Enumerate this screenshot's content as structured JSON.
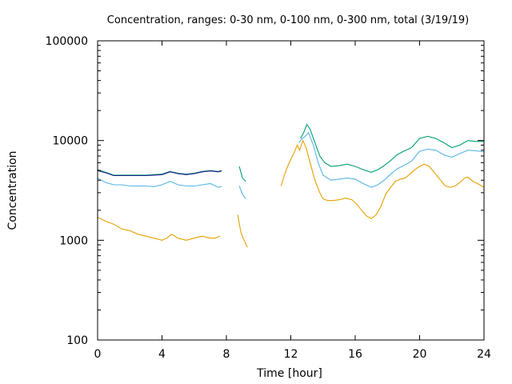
{
  "chart_data": {
    "type": "line",
    "title": "Concentration, ranges: 0-30 nm, 0-100 nm, 0-300 nm, total (3/19/19)",
    "xlabel": "Time [hour]",
    "ylabel": "Concentration",
    "xlim": [
      0,
      24
    ],
    "ylim": [
      100,
      100000
    ],
    "yscale": "log",
    "xticks": [
      0,
      4,
      8,
      12,
      16,
      20,
      24
    ],
    "yticks": [
      100,
      1000,
      10000,
      100000
    ],
    "grid": false,
    "legend": "none",
    "series": [
      {
        "color": "#e69f00",
        "x": [
          0,
          0.5,
          1,
          1.5,
          2,
          2.5,
          3,
          3.5,
          4,
          4.3,
          4.6,
          5,
          5.5,
          6,
          6.5,
          7,
          7.3,
          7.6,
          8.7,
          8.9,
          9.1,
          9.3,
          11.4,
          11.6,
          11.8,
          12.0,
          12.2,
          12.4,
          12.55,
          12.75,
          12.95,
          13.2,
          13.5,
          13.8,
          14.0,
          14.3,
          14.6,
          15.0,
          15.4,
          15.8,
          16.1,
          16.4,
          16.7,
          17.0,
          17.3,
          17.6,
          17.9,
          18.2,
          18.5,
          18.8,
          19.1,
          19.4,
          19.7,
          20.0,
          20.3,
          20.6,
          21.0,
          21.3,
          21.6,
          21.9,
          22.2,
          22.5,
          22.8,
          23.0,
          23.3,
          23.6,
          24.0
        ],
        "values": [
          1700,
          1550,
          1450,
          1300,
          1250,
          1150,
          1100,
          1050,
          1000,
          1050,
          1150,
          1050,
          1000,
          1050,
          1100,
          1050,
          1050,
          1100,
          1800,
          1200,
          1000,
          850,
          3500,
          4500,
          5500,
          6500,
          7500,
          9000,
          8000,
          10000,
          8500,
          6000,
          4000,
          3000,
          2600,
          2500,
          2500,
          2550,
          2650,
          2550,
          2300,
          2000,
          1750,
          1650,
          1800,
          2200,
          2900,
          3400,
          3900,
          4100,
          4200,
          4600,
          5100,
          5500,
          5800,
          5500,
          4600,
          4000,
          3500,
          3400,
          3500,
          3800,
          4200,
          4300,
          3900,
          3700,
          3400
        ]
      },
      {
        "color": "#56b4e9",
        "x": [
          0,
          0.5,
          1,
          1.5,
          2,
          2.5,
          3,
          3.5,
          4,
          4.5,
          5,
          5.5,
          6,
          6.5,
          7,
          7.5,
          7.7,
          8.8,
          9.0,
          9.2,
          12.5,
          12.7,
          12.9,
          13.1,
          13.4,
          13.7,
          14.0,
          14.5,
          15.0,
          15.5,
          16.0,
          16.5,
          17.0,
          17.4,
          17.8,
          18.2,
          18.6,
          19.0,
          19.5,
          20.0,
          20.5,
          21.0,
          21.5,
          22.0,
          22.5,
          23.0,
          23.5,
          24.0
        ],
        "values": [
          4200,
          3800,
          3600,
          3600,
          3500,
          3500,
          3500,
          3450,
          3600,
          3900,
          3600,
          3500,
          3500,
          3600,
          3700,
          3400,
          3450,
          3500,
          2900,
          2600,
          9500,
          10500,
          11000,
          12000,
          9000,
          6000,
          4500,
          4000,
          4100,
          4200,
          4100,
          3700,
          3400,
          3600,
          4000,
          4600,
          5200,
          5600,
          6200,
          7800,
          8200,
          8000,
          7200,
          6800,
          7400,
          8000,
          7900,
          7700
        ]
      },
      {
        "color": "#009e73",
        "x": [
          0,
          0.5,
          1,
          1.5,
          2,
          2.5,
          3,
          3.5,
          4,
          4.5,
          5,
          5.5,
          6,
          6.5,
          7,
          7.5,
          7.7,
          8.8,
          9.0,
          9.2,
          12.6,
          12.8,
          13.0,
          13.2,
          13.5,
          13.8,
          14.1,
          14.5,
          15.0,
          15.5,
          16.0,
          16.5,
          17.0,
          17.4,
          17.8,
          18.2,
          18.6,
          19.0,
          19.5,
          20.0,
          20.5,
          21.0,
          21.5,
          22.0,
          22.5,
          23.0,
          23.5,
          24.0
        ],
        "values": [
          5100,
          4800,
          4500,
          4500,
          4500,
          4500,
          4500,
          4550,
          4600,
          4900,
          4700,
          4600,
          4700,
          4900,
          5000,
          4900,
          5000,
          5500,
          4200,
          3900,
          10500,
          12000,
          14500,
          13000,
          9500,
          7000,
          6000,
          5500,
          5600,
          5800,
          5500,
          5100,
          4800,
          5100,
          5600,
          6300,
          7200,
          7800,
          8500,
          10500,
          11000,
          10500,
          9500,
          8500,
          9000,
          10000,
          9800,
          9800
        ]
      },
      {
        "color": "#1f1f8f",
        "x": [
          0,
          0.5,
          1,
          1.5,
          2,
          2.5,
          3,
          3.5,
          4,
          4.5,
          5,
          5.5,
          6,
          6.5,
          7,
          7.5,
          7.7
        ],
        "values": [
          5000,
          4750,
          4450,
          4450,
          4450,
          4450,
          4450,
          4500,
          4550,
          4850,
          4650,
          4550,
          4650,
          4850,
          4950,
          4850,
          4950
        ]
      }
    ]
  }
}
